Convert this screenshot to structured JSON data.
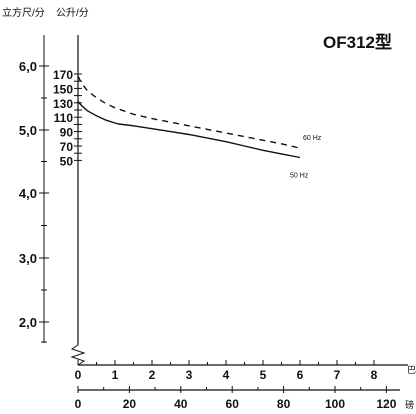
{
  "chart_data": {
    "type": "line",
    "title": "OF312型",
    "y_axis_left": {
      "label": "立方尺/分",
      "ticks": [
        "6,0",
        "5,0",
        "4,0",
        "3,0",
        "2,0"
      ],
      "tick_values": [
        6,
        5,
        4,
        3,
        2
      ]
    },
    "y_axis_right": {
      "label": "公升/分",
      "ticks": [
        "170",
        "150",
        "130",
        "110",
        "90",
        "70",
        "50"
      ],
      "tick_values": [
        170,
        150,
        130,
        110,
        90,
        70,
        50
      ],
      "ylim": [
        50,
        170
      ]
    },
    "x_axis_top": {
      "label": "巴",
      "ticks": [
        "0",
        "1",
        "2",
        "3",
        "4",
        "5",
        "6",
        "7",
        "8"
      ],
      "tick_values": [
        0,
        1,
        2,
        3,
        4,
        5,
        6,
        7,
        8
      ],
      "xlim": [
        0,
        8
      ]
    },
    "x_axis_bottom": {
      "label": "磅",
      "ticks": [
        "0",
        "20",
        "40",
        "60",
        "80",
        "100",
        "120"
      ],
      "tick_values": [
        0,
        20,
        40,
        60,
        80,
        100,
        120
      ]
    },
    "series": [
      {
        "name": "60 Hz",
        "style": "dashed",
        "x": [
          0.0,
          0.1,
          0.25,
          0.5,
          0.75,
          1.0,
          1.5,
          2.0,
          2.5,
          3.0,
          3.5,
          4.0,
          4.5,
          5.0,
          5.5,
          6.0
        ],
        "y": [
          167.0,
          157.0,
          147.0,
          137.0,
          129.0,
          123.0,
          114.0,
          108.0,
          103.0,
          98.0,
          93.0,
          88.0,
          83.0,
          78.0,
          73.0,
          67.0
        ]
      },
      {
        "name": "50 Hz",
        "style": "solid",
        "x": [
          0.0,
          0.1,
          0.25,
          0.5,
          0.75,
          1.0,
          1.1,
          1.5,
          2.0,
          2.5,
          3.0,
          3.5,
          4.0,
          4.5,
          5.0,
          5.5,
          6.0
        ],
        "y": [
          132.0,
          126.0,
          119.0,
          112.0,
          106.0,
          102.0,
          100.5,
          98.0,
          94.0,
          90.0,
          86.0,
          81.0,
          76.0,
          70.0,
          64.0,
          59.0,
          54.0
        ]
      }
    ]
  }
}
